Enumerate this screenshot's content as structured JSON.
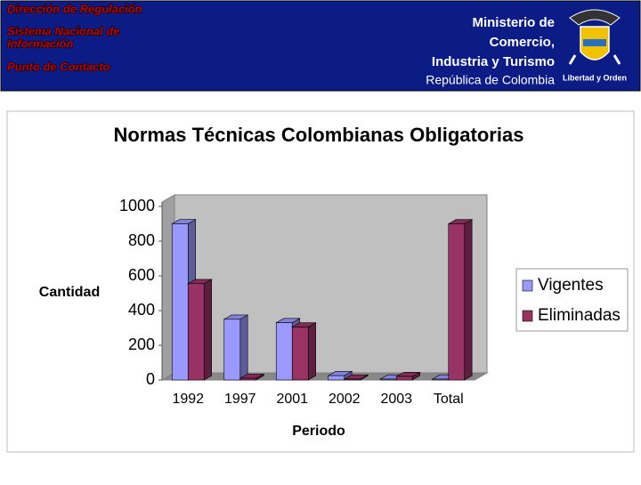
{
  "header": {
    "left_lines": [
      "Dirección de Regulación",
      "Sistema Nacional de",
      "Información",
      "Punto de Contacto"
    ],
    "ministry_lines": [
      "Ministerio de",
      "Comercio,",
      "Industria y Turismo"
    ],
    "country": "República de Colombia",
    "motto": "Libertad y Orden"
  },
  "chart_data": {
    "type": "bar3d",
    "title": "Normas Técnicas Colombianas Obligatorias",
    "x_label": "Periodo",
    "y_label": "Cantidad",
    "categories": [
      "1992",
      "1997",
      "2001",
      "2002",
      "2003",
      "Total"
    ],
    "series": [
      {
        "name": "Vigentes",
        "color": "#9999ff",
        "values": [
          900,
          350,
          330,
          25,
          5,
          5
        ]
      },
      {
        "name": "Eliminadas",
        "color": "#993366",
        "values": [
          555,
          10,
          305,
          5,
          20,
          900
        ]
      }
    ],
    "ylim": [
      0,
      1000
    ],
    "yticks": [
      0,
      200,
      400,
      600,
      800,
      1000
    ],
    "grid": false,
    "legend": "right"
  }
}
